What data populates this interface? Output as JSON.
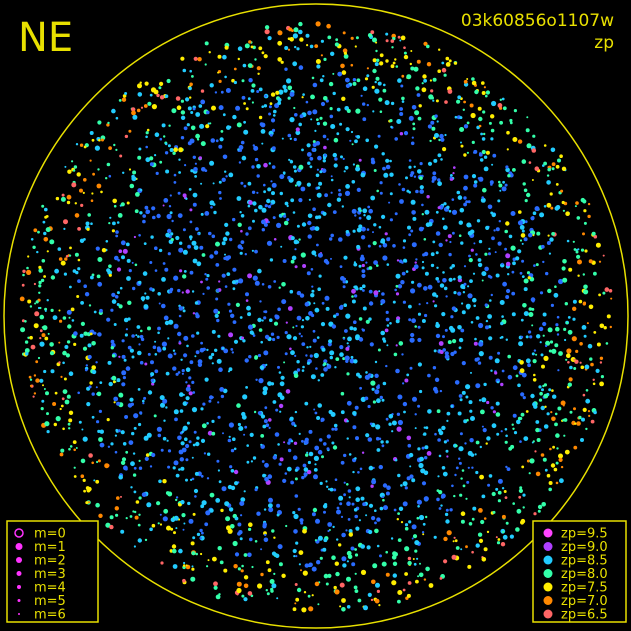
{
  "corner_label": "NE",
  "title": "03k60856o1107w",
  "subtitle": "zp",
  "magnitude_legend": {
    "color": "#ff33ff",
    "items": [
      "m=0",
      "m=1",
      "m=2",
      "m=3",
      "m=4",
      "m=5",
      "m=6"
    ]
  },
  "zp_legend": {
    "items": [
      {
        "label": "zp=9.5",
        "color": "#ff44ff"
      },
      {
        "label": "zp=9.0",
        "color": "#b040ff"
      },
      {
        "label": "zp=8.5",
        "color": "#22ccff"
      },
      {
        "label": "zp=8.0",
        "color": "#33ffaa"
      },
      {
        "label": "zp=7.5",
        "color": "#ffee00"
      },
      {
        "label": "zp=7.0",
        "color": "#ff8800"
      },
      {
        "label": "zp=6.5",
        "color": "#ff6666"
      }
    ]
  },
  "frame_color": "#e8e000"
}
